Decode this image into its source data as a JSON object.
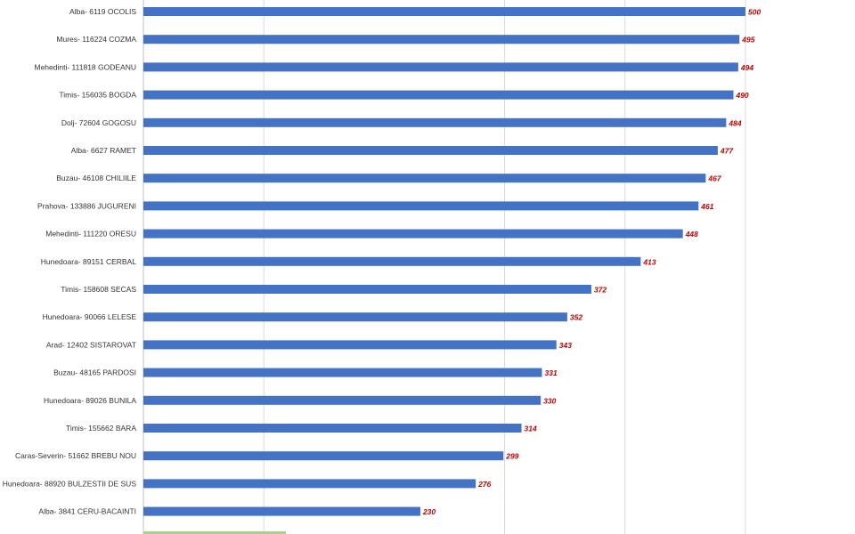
{
  "colors": {
    "bar": "#4472c4",
    "value_label": "#c00000",
    "category_label": "#333333",
    "gridline": "#d9d9d9",
    "axis": "#bfbfbf",
    "cut_bar": "#a9d18e"
  },
  "chart_data": {
    "type": "bar",
    "orientation": "horizontal",
    "title": "",
    "xlabel": "",
    "ylabel": "",
    "xlim": [
      0,
      500
    ],
    "grid": true,
    "legend": "none",
    "categories": [
      "Alba- 6119 OCOLIS",
      "Mures- 116224 COZMA",
      "Mehedinti- 111818 GODEANU",
      "Timis- 156035 BOGDA",
      "Dolj- 72604 GOGOSU",
      "Alba- 6627 RAMET",
      "Buzau- 46108 CHILIILE",
      "Prahova- 133886 JUGURENI",
      "Mehedinti- 111220 ORESU",
      "Hunedoara- 89151 CERBAL",
      "Timis- 158608 SECAS",
      "Hunedoara- 90066 LELESE",
      "Arad- 12402 SISTAROVAT",
      "Buzau- 48165 PARDOSI",
      "Hunedoara- 89026 BUNILA",
      "Timis- 155662 BARA",
      "Caras-Severin- 51662 BREBU NOU",
      "Hunedoara- 88920 BULZESTII DE SUS",
      "Alba- 3841 CERU-BACAINTI"
    ],
    "values": [
      500,
      495,
      494,
      490,
      484,
      477,
      467,
      461,
      448,
      413,
      372,
      352,
      343,
      331,
      330,
      314,
      299,
      276,
      230
    ]
  }
}
